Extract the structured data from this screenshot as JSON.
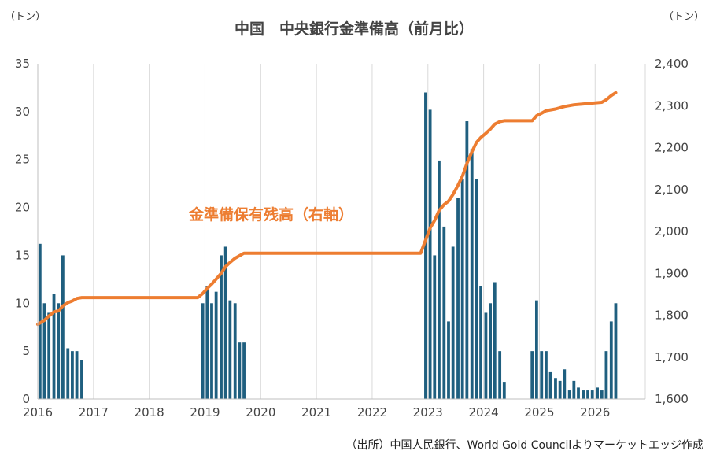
{
  "chart_data": {
    "type": "bar+line",
    "title": "中国　中央銀行金準備高（前月比）",
    "left_unit": "（トン）",
    "right_unit": "（トン）",
    "annotation": "金準備保有残高（右軸）",
    "source": "（出所）中国人民銀行、World Gold Councilよりマーケットエッジ作成",
    "x_axis": {
      "labels": [
        "2016",
        "2017",
        "2018",
        "2019",
        "2020",
        "2021",
        "2022",
        "2023",
        "2024",
        "2025",
        "2026"
      ],
      "range": [
        2016.0,
        2026.9
      ]
    },
    "left_axis": {
      "min": 0,
      "max": 35,
      "step": 5,
      "labels": [
        "0",
        "5",
        "10",
        "15",
        "20",
        "25",
        "30",
        "35"
      ]
    },
    "right_axis": {
      "min": 1600,
      "max": 2400,
      "step": 100,
      "labels": [
        "1,600",
        "1,700",
        "1,800",
        "1,900",
        "2,000",
        "2,100",
        "2,200",
        "2,300",
        "2,400"
      ]
    },
    "grid": "vertical",
    "colors": {
      "bars": "#1F5F7F",
      "line": "#ED7D31",
      "grid": "#D9D9D9",
      "axis": "#BFBFBF"
    },
    "bar_series": {
      "name": "前月比",
      "axis": "left",
      "points": [
        {
          "x": 2016.04,
          "y": 16.2
        },
        {
          "x": 2016.12,
          "y": 10.0
        },
        {
          "x": 2016.2,
          "y": 9.0
        },
        {
          "x": 2016.29,
          "y": 11.0
        },
        {
          "x": 2016.37,
          "y": 10.0
        },
        {
          "x": 2016.45,
          "y": 15.0
        },
        {
          "x": 2016.54,
          "y": 5.3
        },
        {
          "x": 2016.62,
          "y": 5.0
        },
        {
          "x": 2016.7,
          "y": 5.0
        },
        {
          "x": 2016.79,
          "y": 4.1
        },
        {
          "x": 2018.96,
          "y": 10.0
        },
        {
          "x": 2019.04,
          "y": 11.8
        },
        {
          "x": 2019.12,
          "y": 10.0
        },
        {
          "x": 2019.2,
          "y": 11.2
        },
        {
          "x": 2019.29,
          "y": 15.0
        },
        {
          "x": 2019.37,
          "y": 15.9
        },
        {
          "x": 2019.45,
          "y": 10.3
        },
        {
          "x": 2019.54,
          "y": 10.0
        },
        {
          "x": 2019.62,
          "y": 5.9
        },
        {
          "x": 2019.7,
          "y": 5.9
        },
        {
          "x": 2022.96,
          "y": 32.0
        },
        {
          "x": 2023.04,
          "y": 30.2
        },
        {
          "x": 2023.12,
          "y": 15.0
        },
        {
          "x": 2023.2,
          "y": 24.9
        },
        {
          "x": 2023.29,
          "y": 18.0
        },
        {
          "x": 2023.37,
          "y": 8.1
        },
        {
          "x": 2023.45,
          "y": 15.9
        },
        {
          "x": 2023.54,
          "y": 21.0
        },
        {
          "x": 2023.62,
          "y": 23.0
        },
        {
          "x": 2023.7,
          "y": 29.0
        },
        {
          "x": 2023.79,
          "y": 26.1
        },
        {
          "x": 2023.87,
          "y": 23.0
        },
        {
          "x": 2023.95,
          "y": 11.8
        },
        {
          "x": 2024.04,
          "y": 9.0
        },
        {
          "x": 2024.12,
          "y": 10.0
        },
        {
          "x": 2024.2,
          "y": 12.2
        },
        {
          "x": 2024.29,
          "y": 5.0
        },
        {
          "x": 2024.37,
          "y": 1.8
        },
        {
          "x": 2024.87,
          "y": 5.0
        },
        {
          "x": 2024.95,
          "y": 10.3
        },
        {
          "x": 2025.04,
          "y": 5.0
        },
        {
          "x": 2025.12,
          "y": 5.0
        },
        {
          "x": 2025.2,
          "y": 2.8
        },
        {
          "x": 2025.29,
          "y": 2.2
        },
        {
          "x": 2025.37,
          "y": 1.9
        },
        {
          "x": 2025.45,
          "y": 3.1
        },
        {
          "x": 2025.54,
          "y": 0.9
        },
        {
          "x": 2025.62,
          "y": 1.9
        },
        {
          "x": 2025.7,
          "y": 1.2
        },
        {
          "x": 2025.79,
          "y": 0.9
        },
        {
          "x": 2025.87,
          "y": 0.9
        },
        {
          "x": 2025.95,
          "y": 0.9
        },
        {
          "x": 2026.04,
          "y": 1.2
        },
        {
          "x": 2026.12,
          "y": 0.9
        },
        {
          "x": 2026.2,
          "y": 5.0
        },
        {
          "x": 2026.29,
          "y": 8.1
        },
        {
          "x": 2026.37,
          "y": 10.0
        }
      ]
    },
    "line_series": {
      "name": "金準備保有残高",
      "axis": "right",
      "points": [
        [
          2016.0,
          1778
        ],
        [
          2016.12,
          1788
        ],
        [
          2016.2,
          1798
        ],
        [
          2016.29,
          1808
        ],
        [
          2016.37,
          1810
        ],
        [
          2016.45,
          1822
        ],
        [
          2016.54,
          1830
        ],
        [
          2016.62,
          1834
        ],
        [
          2016.7,
          1840
        ],
        [
          2016.79,
          1842
        ],
        [
          2017.5,
          1842
        ],
        [
          2018.0,
          1842
        ],
        [
          2018.87,
          1842
        ],
        [
          2018.96,
          1852
        ],
        [
          2019.04,
          1864
        ],
        [
          2019.12,
          1874
        ],
        [
          2019.2,
          1886
        ],
        [
          2019.29,
          1900
        ],
        [
          2019.37,
          1916
        ],
        [
          2019.45,
          1926
        ],
        [
          2019.54,
          1936
        ],
        [
          2019.62,
          1942
        ],
        [
          2019.7,
          1948
        ],
        [
          2020.5,
          1948
        ],
        [
          2021.5,
          1948
        ],
        [
          2022.87,
          1948
        ],
        [
          2022.96,
          1980
        ],
        [
          2023.04,
          2008
        ],
        [
          2023.12,
          2026
        ],
        [
          2023.2,
          2050
        ],
        [
          2023.29,
          2064
        ],
        [
          2023.37,
          2072
        ],
        [
          2023.45,
          2088
        ],
        [
          2023.54,
          2110
        ],
        [
          2023.62,
          2132
        ],
        [
          2023.7,
          2162
        ],
        [
          2023.79,
          2190
        ],
        [
          2023.87,
          2212
        ],
        [
          2023.95,
          2224
        ],
        [
          2024.04,
          2234
        ],
        [
          2024.12,
          2244
        ],
        [
          2024.2,
          2256
        ],
        [
          2024.29,
          2262
        ],
        [
          2024.37,
          2264
        ],
        [
          2024.87,
          2264
        ],
        [
          2024.95,
          2276
        ],
        [
          2025.04,
          2282
        ],
        [
          2025.12,
          2288
        ],
        [
          2025.29,
          2292
        ],
        [
          2025.45,
          2298
        ],
        [
          2025.62,
          2302
        ],
        [
          2025.79,
          2304
        ],
        [
          2025.95,
          2306
        ],
        [
          2026.12,
          2308
        ],
        [
          2026.2,
          2314
        ],
        [
          2026.29,
          2324
        ],
        [
          2026.37,
          2331
        ]
      ]
    }
  }
}
